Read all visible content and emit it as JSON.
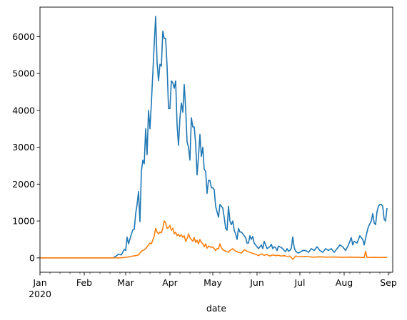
{
  "chart_data": {
    "type": "line",
    "title": "",
    "xlabel": "date",
    "ylabel": "",
    "xlim": [
      "2020-01-01",
      "2020-09-04"
    ],
    "ylim": [
      -390,
      6800
    ],
    "grid": false,
    "legend": "none",
    "x_ticks": [
      {
        "date": "2020-01-01",
        "label": "Jan",
        "sublabel": "2020"
      },
      {
        "date": "2020-02-01",
        "label": "Feb"
      },
      {
        "date": "2020-03-01",
        "label": "Mar"
      },
      {
        "date": "2020-04-01",
        "label": "Apr"
      },
      {
        "date": "2020-05-01",
        "label": "May"
      },
      {
        "date": "2020-06-01",
        "label": "Jun"
      },
      {
        "date": "2020-07-01",
        "label": "Jul"
      },
      {
        "date": "2020-08-01",
        "label": "Aug"
      },
      {
        "date": "2020-09-01",
        "label": "Sep"
      }
    ],
    "y_ticks": [
      0,
      1000,
      2000,
      3000,
      4000,
      5000,
      6000
    ],
    "series": [
      {
        "color": "#1f77b4",
        "points": [
          [
            "2020-01-01",
            0
          ],
          [
            "2020-02-21",
            0
          ],
          [
            "2020-02-23",
            40
          ],
          [
            "2020-02-25",
            100
          ],
          [
            "2020-02-27",
            80
          ],
          [
            "2020-02-29",
            230
          ],
          [
            "2020-03-01",
            200
          ],
          [
            "2020-03-02",
            560
          ],
          [
            "2020-03-03",
            380
          ],
          [
            "2020-03-05",
            640
          ],
          [
            "2020-03-06",
            760
          ],
          [
            "2020-03-07",
            770
          ],
          [
            "2020-03-08",
            1200
          ],
          [
            "2020-03-09",
            1450
          ],
          [
            "2020-03-10",
            1800
          ],
          [
            "2020-03-11",
            980
          ],
          [
            "2020-03-12",
            2350
          ],
          [
            "2020-03-13",
            2650
          ],
          [
            "2020-03-14",
            2550
          ],
          [
            "2020-03-15",
            3500
          ],
          [
            "2020-03-16",
            2800
          ],
          [
            "2020-03-17",
            4000
          ],
          [
            "2020-03-18",
            3500
          ],
          [
            "2020-03-19",
            4200
          ],
          [
            "2020-03-20",
            5000
          ],
          [
            "2020-03-21",
            5800
          ],
          [
            "2020-03-22",
            6550
          ],
          [
            "2020-03-23",
            5300
          ],
          [
            "2020-03-24",
            4800
          ],
          [
            "2020-03-25",
            5250
          ],
          [
            "2020-03-26",
            5200
          ],
          [
            "2020-03-27",
            6150
          ],
          [
            "2020-03-28",
            5950
          ],
          [
            "2020-03-29",
            5950
          ],
          [
            "2020-03-30",
            5200
          ],
          [
            "2020-03-31",
            4050
          ],
          [
            "2020-04-01",
            4050
          ],
          [
            "2020-04-02",
            4800
          ],
          [
            "2020-04-03",
            4750
          ],
          [
            "2020-04-04",
            4600
          ],
          [
            "2020-04-05",
            4800
          ],
          [
            "2020-04-06",
            3600
          ],
          [
            "2020-04-07",
            3050
          ],
          [
            "2020-04-08",
            3800
          ],
          [
            "2020-04-09",
            4200
          ],
          [
            "2020-04-10",
            3950
          ],
          [
            "2020-04-11",
            4700
          ],
          [
            "2020-04-12",
            4050
          ],
          [
            "2020-04-13",
            3150
          ],
          [
            "2020-04-14",
            3000
          ],
          [
            "2020-04-15",
            2650
          ],
          [
            "2020-04-16",
            3800
          ],
          [
            "2020-04-17",
            3550
          ],
          [
            "2020-04-18",
            3550
          ],
          [
            "2020-04-19",
            3100
          ],
          [
            "2020-04-20",
            2250
          ],
          [
            "2020-04-21",
            2750
          ],
          [
            "2020-04-22",
            3350
          ],
          [
            "2020-04-23",
            2750
          ],
          [
            "2020-04-24",
            3000
          ],
          [
            "2020-04-25",
            2400
          ],
          [
            "2020-04-26",
            2350
          ],
          [
            "2020-04-27",
            1750
          ],
          [
            "2020-04-28",
            2100
          ],
          [
            "2020-04-29",
            2100
          ],
          [
            "2020-04-30",
            1900
          ],
          [
            "2020-05-01",
            1900
          ],
          [
            "2020-05-02",
            1850
          ],
          [
            "2020-05-03",
            1400
          ],
          [
            "2020-05-04",
            1250
          ],
          [
            "2020-05-05",
            1100
          ],
          [
            "2020-05-06",
            1450
          ],
          [
            "2020-05-07",
            1400
          ],
          [
            "2020-05-08",
            1350
          ],
          [
            "2020-05-09",
            1100
          ],
          [
            "2020-05-10",
            800
          ],
          [
            "2020-05-11",
            750
          ],
          [
            "2020-05-12",
            1400
          ],
          [
            "2020-05-13",
            1000
          ],
          [
            "2020-05-14",
            900
          ],
          [
            "2020-05-15",
            1000
          ],
          [
            "2020-05-16",
            750
          ],
          [
            "2020-05-17",
            650
          ],
          [
            "2020-05-18",
            500
          ],
          [
            "2020-05-19",
            800
          ],
          [
            "2020-05-20",
            700
          ],
          [
            "2020-05-21",
            700
          ],
          [
            "2020-05-22",
            650
          ],
          [
            "2020-05-23",
            600
          ],
          [
            "2020-05-24",
            550
          ],
          [
            "2020-05-25",
            400
          ],
          [
            "2020-05-26",
            400
          ],
          [
            "2020-05-27",
            600
          ],
          [
            "2020-05-28",
            500
          ],
          [
            "2020-05-29",
            580
          ],
          [
            "2020-05-30",
            400
          ],
          [
            "2020-05-31",
            350
          ],
          [
            "2020-06-01",
            300
          ],
          [
            "2020-06-02",
            250
          ],
          [
            "2020-06-03",
            300
          ],
          [
            "2020-06-04",
            350
          ],
          [
            "2020-06-05",
            250
          ],
          [
            "2020-06-06",
            450
          ],
          [
            "2020-06-07",
            350
          ],
          [
            "2020-06-08",
            250
          ],
          [
            "2020-06-09",
            280
          ],
          [
            "2020-06-10",
            300
          ],
          [
            "2020-06-11",
            370
          ],
          [
            "2020-06-12",
            250
          ],
          [
            "2020-06-13",
            300
          ],
          [
            "2020-06-14",
            280
          ],
          [
            "2020-06-15",
            200
          ],
          [
            "2020-06-16",
            320
          ],
          [
            "2020-06-17",
            300
          ],
          [
            "2020-06-18",
            280
          ],
          [
            "2020-06-19",
            250
          ],
          [
            "2020-06-20",
            200
          ],
          [
            "2020-06-21",
            170
          ],
          [
            "2020-06-22",
            250
          ],
          [
            "2020-06-23",
            180
          ],
          [
            "2020-06-24",
            200
          ],
          [
            "2020-06-25",
            260
          ],
          [
            "2020-06-26",
            570
          ],
          [
            "2020-06-27",
            280
          ],
          [
            "2020-06-28",
            180
          ],
          [
            "2020-06-29",
            150
          ],
          [
            "2020-06-30",
            130
          ],
          [
            "2020-07-01",
            150
          ],
          [
            "2020-07-03",
            200
          ],
          [
            "2020-07-05",
            200
          ],
          [
            "2020-07-07",
            150
          ],
          [
            "2020-07-09",
            250
          ],
          [
            "2020-07-11",
            200
          ],
          [
            "2020-07-13",
            300
          ],
          [
            "2020-07-15",
            200
          ],
          [
            "2020-07-17",
            150
          ],
          [
            "2020-07-19",
            250
          ],
          [
            "2020-07-21",
            200
          ],
          [
            "2020-07-23",
            250
          ],
          [
            "2020-07-25",
            150
          ],
          [
            "2020-07-27",
            250
          ],
          [
            "2020-07-29",
            350
          ],
          [
            "2020-07-31",
            300
          ],
          [
            "2020-08-02",
            200
          ],
          [
            "2020-08-04",
            350
          ],
          [
            "2020-08-06",
            550
          ],
          [
            "2020-08-07",
            350
          ],
          [
            "2020-08-08",
            450
          ],
          [
            "2020-08-10",
            400
          ],
          [
            "2020-08-12",
            600
          ],
          [
            "2020-08-14",
            500
          ],
          [
            "2020-08-15",
            350
          ],
          [
            "2020-08-17",
            700
          ],
          [
            "2020-08-18",
            850
          ],
          [
            "2020-08-20",
            1000
          ],
          [
            "2020-08-21",
            1200
          ],
          [
            "2020-08-22",
            950
          ],
          [
            "2020-08-23",
            900
          ],
          [
            "2020-08-24",
            1250
          ],
          [
            "2020-08-25",
            1400
          ],
          [
            "2020-08-26",
            1450
          ],
          [
            "2020-08-27",
            1450
          ],
          [
            "2020-08-28",
            1400
          ],
          [
            "2020-08-29",
            1050
          ],
          [
            "2020-08-30",
            1000
          ],
          [
            "2020-08-31",
            1350
          ]
        ]
      },
      {
        "color": "#ff7f0e",
        "points": [
          [
            "2020-01-01",
            0
          ],
          [
            "2020-02-26",
            0
          ],
          [
            "2020-02-29",
            10
          ],
          [
            "2020-03-02",
            20
          ],
          [
            "2020-03-04",
            30
          ],
          [
            "2020-03-06",
            50
          ],
          [
            "2020-03-08",
            60
          ],
          [
            "2020-03-10",
            80
          ],
          [
            "2020-03-11",
            130
          ],
          [
            "2020-03-12",
            180
          ],
          [
            "2020-03-13",
            200
          ],
          [
            "2020-03-14",
            220
          ],
          [
            "2020-03-15",
            250
          ],
          [
            "2020-03-16",
            300
          ],
          [
            "2020-03-17",
            350
          ],
          [
            "2020-03-18",
            400
          ],
          [
            "2020-03-19",
            380
          ],
          [
            "2020-03-20",
            480
          ],
          [
            "2020-03-21",
            600
          ],
          [
            "2020-03-22",
            800
          ],
          [
            "2020-03-23",
            700
          ],
          [
            "2020-03-24",
            650
          ],
          [
            "2020-03-25",
            700
          ],
          [
            "2020-03-26",
            680
          ],
          [
            "2020-03-27",
            800
          ],
          [
            "2020-03-28",
            1000
          ],
          [
            "2020-03-29",
            950
          ],
          [
            "2020-03-30",
            800
          ],
          [
            "2020-03-31",
            820
          ],
          [
            "2020-04-01",
            880
          ],
          [
            "2020-04-02",
            750
          ],
          [
            "2020-04-03",
            800
          ],
          [
            "2020-04-04",
            650
          ],
          [
            "2020-04-05",
            700
          ],
          [
            "2020-04-06",
            600
          ],
          [
            "2020-04-07",
            640
          ],
          [
            "2020-04-08",
            580
          ],
          [
            "2020-04-09",
            620
          ],
          [
            "2020-04-10",
            560
          ],
          [
            "2020-04-11",
            600
          ],
          [
            "2020-04-12",
            450
          ],
          [
            "2020-04-13",
            520
          ],
          [
            "2020-04-14",
            650
          ],
          [
            "2020-04-15",
            550
          ],
          [
            "2020-04-16",
            500
          ],
          [
            "2020-04-17",
            450
          ],
          [
            "2020-04-18",
            550
          ],
          [
            "2020-04-19",
            420
          ],
          [
            "2020-04-20",
            480
          ],
          [
            "2020-04-21",
            380
          ],
          [
            "2020-04-22",
            500
          ],
          [
            "2020-04-23",
            420
          ],
          [
            "2020-04-24",
            380
          ],
          [
            "2020-04-25",
            300
          ],
          [
            "2020-04-26",
            380
          ],
          [
            "2020-04-27",
            260
          ],
          [
            "2020-04-28",
            320
          ],
          [
            "2020-04-29",
            300
          ],
          [
            "2020-04-30",
            280
          ],
          [
            "2020-05-01",
            300
          ],
          [
            "2020-05-03",
            200
          ],
          [
            "2020-05-04",
            250
          ],
          [
            "2020-05-05",
            250
          ],
          [
            "2020-05-06",
            380
          ],
          [
            "2020-05-07",
            280
          ],
          [
            "2020-05-08",
            220
          ],
          [
            "2020-05-10",
            180
          ],
          [
            "2020-05-12",
            150
          ],
          [
            "2020-05-13",
            200
          ],
          [
            "2020-05-15",
            250
          ],
          [
            "2020-05-17",
            180
          ],
          [
            "2020-05-19",
            150
          ],
          [
            "2020-05-21",
            130
          ],
          [
            "2020-05-23",
            220
          ],
          [
            "2020-05-25",
            180
          ],
          [
            "2020-05-27",
            150
          ],
          [
            "2020-05-29",
            120
          ],
          [
            "2020-05-31",
            100
          ],
          [
            "2020-06-02",
            60
          ],
          [
            "2020-06-04",
            110
          ],
          [
            "2020-06-06",
            70
          ],
          [
            "2020-06-08",
            90
          ],
          [
            "2020-06-10",
            50
          ],
          [
            "2020-06-12",
            80
          ],
          [
            "2020-06-14",
            60
          ],
          [
            "2020-06-16",
            70
          ],
          [
            "2020-06-18",
            50
          ],
          [
            "2020-06-20",
            60
          ],
          [
            "2020-06-22",
            40
          ],
          [
            "2020-06-24",
            50
          ],
          [
            "2020-06-26",
            -40
          ],
          [
            "2020-06-28",
            50
          ],
          [
            "2020-07-01",
            30
          ],
          [
            "2020-07-05",
            40
          ],
          [
            "2020-07-10",
            20
          ],
          [
            "2020-07-15",
            30
          ],
          [
            "2020-07-20",
            20
          ],
          [
            "2020-07-25",
            25
          ],
          [
            "2020-07-31",
            15
          ],
          [
            "2020-08-05",
            20
          ],
          [
            "2020-08-10",
            15
          ],
          [
            "2020-08-15",
            10
          ],
          [
            "2020-08-16",
            180
          ],
          [
            "2020-08-17",
            10
          ],
          [
            "2020-08-22",
            15
          ],
          [
            "2020-08-27",
            10
          ],
          [
            "2020-08-31",
            15
          ]
        ]
      }
    ]
  }
}
